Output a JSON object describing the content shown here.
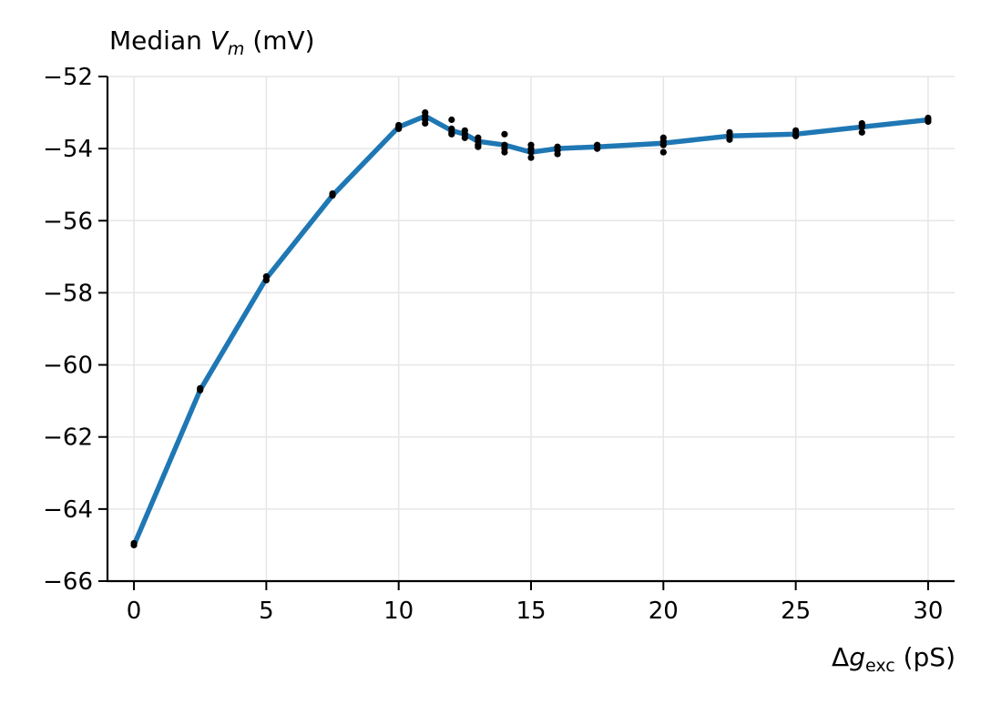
{
  "chart_data": {
    "type": "line",
    "ylabel_prefix": "Median ",
    "ylabel_var": "V",
    "ylabel_sub": "m",
    "ylabel_unit": " (mV)",
    "xlabel_prefix": "Δ",
    "xlabel_var": "g",
    "xlabel_sub": "exc",
    "xlabel_unit": " (pS)",
    "xlim": [
      -1,
      31
    ],
    "ylim": [
      -66,
      -52
    ],
    "xticks": [
      0,
      5,
      10,
      15,
      20,
      25,
      30
    ],
    "yticks": [
      -66,
      -64,
      -62,
      -60,
      -58,
      -56,
      -54,
      -52
    ],
    "xtick_labels": [
      "0",
      "5",
      "10",
      "15",
      "20",
      "25",
      "30"
    ],
    "ytick_labels": [
      "−66",
      "−64",
      "−62",
      "−60",
      "−58",
      "−56",
      "−54",
      "−52"
    ],
    "grid": true,
    "line_color": "#1f77b4",
    "point_color": "#000000",
    "series": [
      {
        "x": [
          0,
          2.5,
          5,
          7.5,
          10,
          11,
          12,
          12.5,
          13,
          14,
          15,
          16,
          17.5,
          20,
          22.5,
          25,
          27.5,
          30
        ],
        "y": [
          -65.0,
          -60.7,
          -57.6,
          -55.3,
          -53.4,
          -53.1,
          -53.5,
          -53.6,
          -53.8,
          -53.9,
          -54.1,
          -54.0,
          -53.95,
          -53.85,
          -53.65,
          -53.6,
          -53.4,
          -53.2
        ]
      }
    ],
    "points": {
      "x": [
        0,
        0,
        2.5,
        2.5,
        5,
        5,
        7.5,
        7.5,
        10,
        10,
        10,
        11,
        11,
        11,
        11,
        12,
        12,
        12,
        12,
        12.5,
        12.5,
        12.5,
        13,
        13,
        13,
        13,
        14,
        14,
        14,
        14,
        15,
        15,
        15,
        15,
        16,
        16,
        16,
        17.5,
        17.5,
        20,
        20,
        20,
        20,
        22.5,
        22.5,
        22.5,
        25,
        25,
        25,
        27.5,
        27.5,
        27.5,
        27.5,
        30,
        30,
        30
      ],
      "y": [
        -64.95,
        -65.0,
        -60.65,
        -60.7,
        -57.55,
        -57.65,
        -55.25,
        -55.3,
        -53.35,
        -53.4,
        -53.45,
        -53.0,
        -53.1,
        -53.2,
        -53.3,
        -53.2,
        -53.45,
        -53.55,
        -53.6,
        -53.5,
        -53.6,
        -53.7,
        -53.7,
        -53.8,
        -53.9,
        -53.95,
        -53.6,
        -53.9,
        -54.0,
        -54.1,
        -53.9,
        -54.0,
        -54.1,
        -54.25,
        -53.95,
        -54.05,
        -54.15,
        -53.9,
        -54.0,
        -53.7,
        -53.8,
        -53.9,
        -54.1,
        -53.55,
        -53.65,
        -53.75,
        -53.5,
        -53.6,
        -53.65,
        -53.3,
        -53.35,
        -53.4,
        -53.55,
        -53.15,
        -53.2,
        -53.25
      ]
    }
  }
}
